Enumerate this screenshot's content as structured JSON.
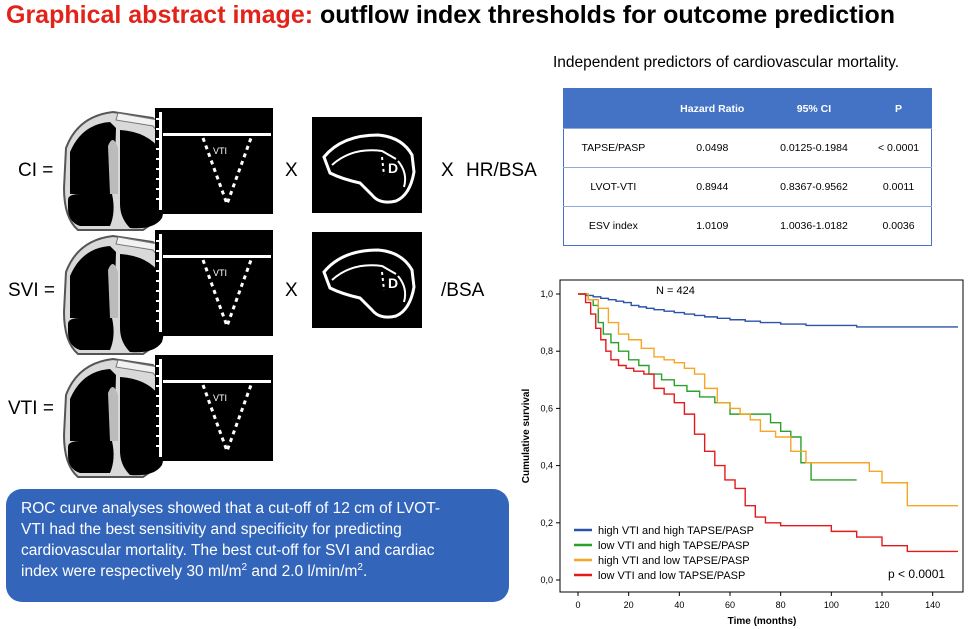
{
  "title": {
    "red": "Graphical abstract image:",
    "black": "outflow index thresholds for outcome prediction"
  },
  "equations": {
    "ci": {
      "label": "CI =",
      "times1": "X",
      "times2": "X",
      "suffix": "HR/BSA"
    },
    "svi": {
      "label": "SVI =",
      "times1": "X",
      "suffix": "/BSA"
    },
    "vti": {
      "label": "VTI ="
    }
  },
  "doppler_label": "VTI",
  "echo_label": "D",
  "table": {
    "caption": "Independent predictors of cardiovascular mortality.",
    "headers": [
      "",
      "Hazard Ratio",
      "95% CI",
      "P"
    ],
    "rows": [
      [
        "TAPSE/PASP",
        "0.0498",
        "0.0125-0.1984",
        "< 0.0001"
      ],
      [
        "LVOT-VTI",
        "0.8944",
        "0.8367-0.9562",
        "0.0011"
      ],
      [
        "ESV index",
        "1.0109",
        "1.0036-1.0182",
        "0.0036"
      ]
    ]
  },
  "roc_box": {
    "line1": "ROC curve analyses showed that a cut-off of 12 cm of LVOT-",
    "line2": "VTI had the best sensitivity and specificity for predicting",
    "line3": "cardiovascular mortality. The best cut-off for SVI and cardiac",
    "line4a": "index were respectively 30 ml/m",
    "sup1": "2",
    "line4b": " and 2.0 l/min/m",
    "sup2": "2",
    "line4c": "."
  },
  "colors": {
    "title_red": "#e2231a",
    "table_header": "#4472c4",
    "roc_box": "#3366bb",
    "series_blue": "#2a52a6",
    "series_green": "#2ca02c",
    "series_orange": "#f5a623",
    "series_red": "#e31a1c"
  },
  "chart_data": {
    "type": "line",
    "step": true,
    "annotation_n": "N = 424",
    "annotation_p": "p < 0.0001",
    "xlabel": "Time (months)",
    "ylabel": "Cumulative survival",
    "xlim": [
      0,
      150
    ],
    "ylim": [
      0,
      1.0
    ],
    "xticks": [
      "0",
      "20",
      "40",
      "60",
      "80",
      "100",
      "120",
      "140"
    ],
    "yticks": [
      "0,0",
      "0,2",
      "0,4",
      "0,6",
      "0,8",
      "1,0"
    ],
    "legend_position": "bottom-left",
    "series": [
      {
        "name": "high VTI and high TAPSE/PASP",
        "color": "#2a52a6",
        "x": [
          0,
          3,
          6,
          9,
          12,
          15,
          18,
          21,
          24,
          27,
          30,
          34,
          38,
          42,
          46,
          50,
          55,
          60,
          66,
          72,
          80,
          90,
          100,
          110,
          120,
          130,
          140,
          150
        ],
        "y": [
          1.0,
          0.995,
          0.99,
          0.985,
          0.98,
          0.975,
          0.97,
          0.96,
          0.955,
          0.95,
          0.945,
          0.94,
          0.935,
          0.93,
          0.925,
          0.92,
          0.915,
          0.91,
          0.905,
          0.9,
          0.895,
          0.89,
          0.89,
          0.885,
          0.885,
          0.885,
          0.885,
          0.885
        ]
      },
      {
        "name": "low VTI and high TAPSE/PASP",
        "color": "#2ca02c",
        "x": [
          0,
          4,
          6,
          8,
          10,
          13,
          16,
          20,
          24,
          28,
          33,
          38,
          43,
          48,
          54,
          60,
          66,
          72,
          76,
          80,
          84,
          88,
          92,
          96,
          100,
          110
        ],
        "y": [
          1.0,
          0.98,
          0.96,
          0.9,
          0.86,
          0.83,
          0.8,
          0.77,
          0.75,
          0.72,
          0.7,
          0.68,
          0.66,
          0.64,
          0.62,
          0.58,
          0.58,
          0.58,
          0.55,
          0.52,
          0.5,
          0.41,
          0.35,
          0.35,
          0.35,
          0.35
        ]
      },
      {
        "name": "high VTI and low TAPSE/PASP",
        "color": "#f5a623",
        "x": [
          0,
          4,
          8,
          12,
          16,
          20,
          25,
          30,
          34,
          38,
          42,
          46,
          50,
          55,
          60,
          64,
          68,
          72,
          78,
          84,
          90,
          96,
          100,
          108,
          115,
          120,
          125,
          130,
          140,
          150
        ],
        "y": [
          1.0,
          0.98,
          0.95,
          0.9,
          0.86,
          0.84,
          0.81,
          0.78,
          0.77,
          0.76,
          0.74,
          0.72,
          0.67,
          0.62,
          0.6,
          0.58,
          0.56,
          0.52,
          0.5,
          0.45,
          0.41,
          0.41,
          0.41,
          0.41,
          0.38,
          0.34,
          0.34,
          0.26,
          0.26,
          0.26
        ]
      },
      {
        "name": "low VTI and low TAPSE/PASP",
        "color": "#e31a1c",
        "x": [
          0,
          3,
          5,
          7,
          9,
          11,
          13,
          16,
          19,
          22,
          26,
          30,
          34,
          38,
          42,
          46,
          50,
          54,
          58,
          62,
          66,
          70,
          74,
          80,
          90,
          100,
          110,
          120,
          130,
          140,
          150
        ],
        "y": [
          1.0,
          0.97,
          0.93,
          0.88,
          0.84,
          0.8,
          0.77,
          0.75,
          0.74,
          0.73,
          0.72,
          0.67,
          0.65,
          0.62,
          0.58,
          0.51,
          0.45,
          0.4,
          0.35,
          0.32,
          0.26,
          0.22,
          0.2,
          0.19,
          0.19,
          0.17,
          0.15,
          0.12,
          0.1,
          0.1,
          0.1
        ]
      }
    ]
  }
}
